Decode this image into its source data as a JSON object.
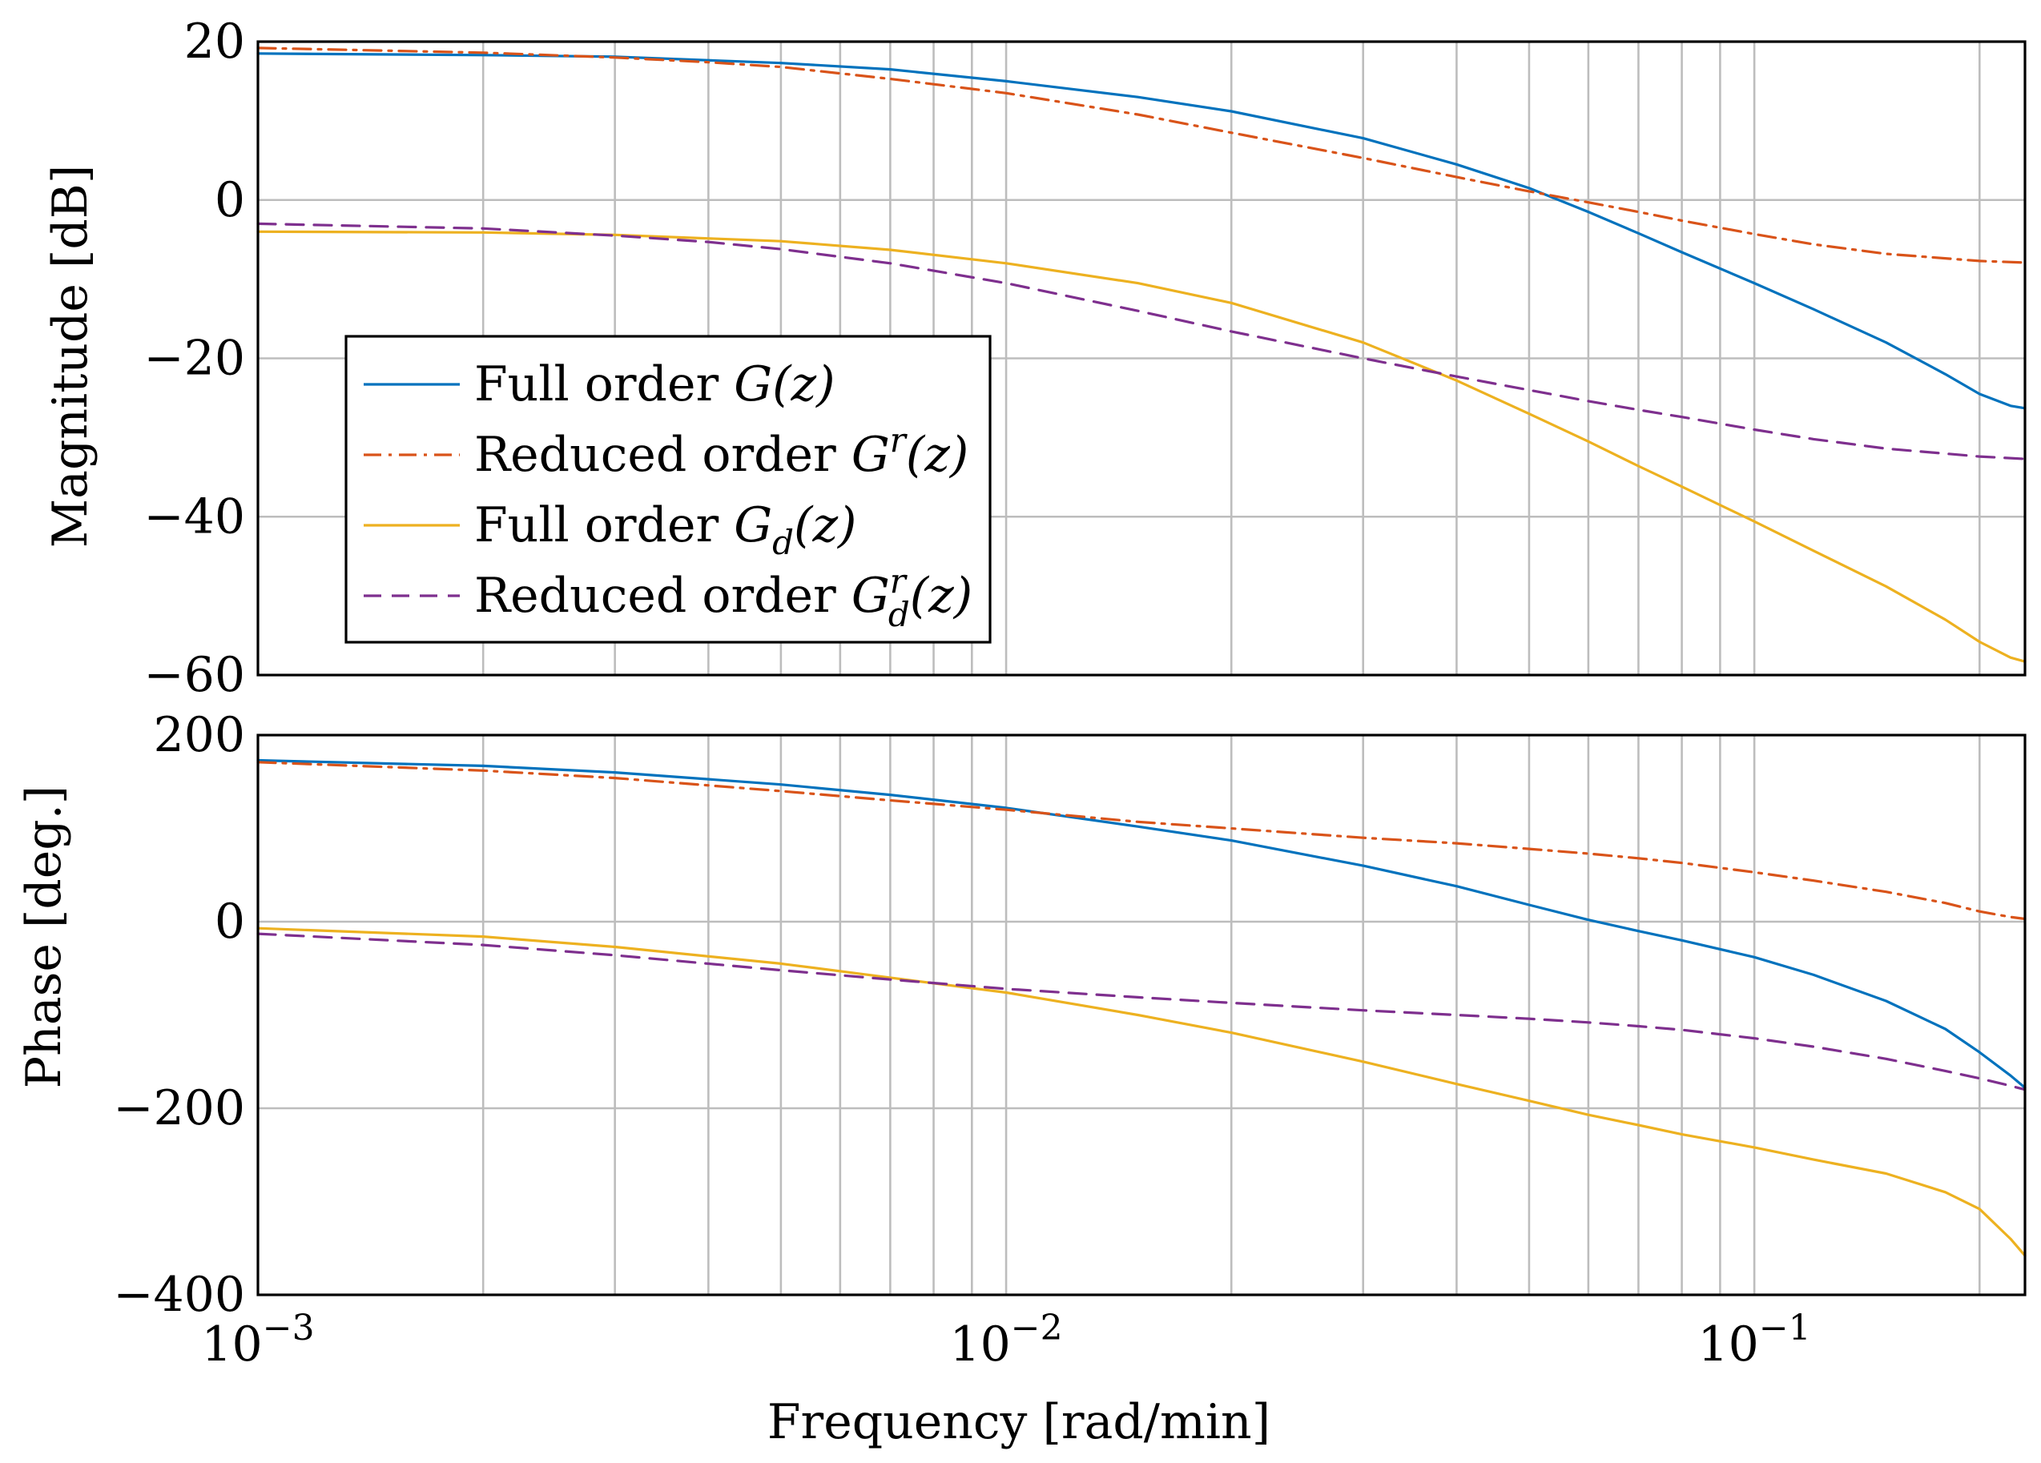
{
  "chart_data": [
    {
      "type": "line",
      "panel": "magnitude",
      "xscale": "log",
      "xlim": [
        0.001,
        0.23
      ],
      "ylim": [
        -60,
        20
      ],
      "ylabel": "Magnitude [dB]",
      "yticks": [
        {
          "value": 20,
          "label": "20"
        },
        {
          "value": 0,
          "label": "0"
        },
        {
          "value": -20,
          "label": "−20"
        },
        {
          "value": -40,
          "label": "−40"
        },
        {
          "value": -60,
          "label": "−60"
        }
      ],
      "grid": true,
      "legend_position": "bottom-left",
      "series": [
        {
          "name": "Full order G(z)",
          "key": "full_g",
          "color": "#0072bd",
          "dash": "solid",
          "x": [
            0.001,
            0.002,
            0.003,
            0.005,
            0.007,
            0.01,
            0.015,
            0.02,
            0.03,
            0.04,
            0.05,
            0.06,
            0.07,
            0.08,
            0.1,
            0.12,
            0.15,
            0.18,
            0.2,
            0.22,
            0.23
          ],
          "y": [
            18.5,
            18.3,
            18.1,
            17.3,
            16.5,
            15.0,
            13.0,
            11.2,
            7.8,
            4.5,
            1.5,
            -1.5,
            -4.2,
            -6.6,
            -10.5,
            -13.8,
            -18.0,
            -22.0,
            -24.5,
            -26.0,
            -26.3
          ]
        },
        {
          "name": "Reduced order G^r(z)",
          "key": "reduced_g",
          "color": "#d95319",
          "dash": "dashdot",
          "x": [
            0.001,
            0.002,
            0.003,
            0.004,
            0.005,
            0.007,
            0.01,
            0.015,
            0.02,
            0.03,
            0.04,
            0.05,
            0.06,
            0.07,
            0.08,
            0.1,
            0.12,
            0.15,
            0.2,
            0.23
          ],
          "y": [
            19.2,
            18.6,
            18.0,
            17.4,
            16.8,
            15.3,
            13.5,
            10.8,
            8.5,
            5.3,
            2.9,
            1.1,
            -0.3,
            -1.5,
            -2.6,
            -4.3,
            -5.6,
            -6.8,
            -7.7,
            -7.9
          ]
        },
        {
          "name": "Full order G_d(z)",
          "key": "full_gd",
          "color": "#edb120",
          "dash": "solid",
          "x": [
            0.001,
            0.002,
            0.003,
            0.005,
            0.007,
            0.01,
            0.015,
            0.02,
            0.03,
            0.04,
            0.05,
            0.06,
            0.07,
            0.08,
            0.1,
            0.12,
            0.15,
            0.18,
            0.2,
            0.22,
            0.23
          ],
          "y": [
            -4.0,
            -4.1,
            -4.4,
            -5.2,
            -6.3,
            -8.0,
            -10.5,
            -13.0,
            -18.0,
            -22.8,
            -27.0,
            -30.5,
            -33.6,
            -36.2,
            -40.6,
            -44.3,
            -48.8,
            -53.0,
            -55.8,
            -57.8,
            -58.3
          ]
        },
        {
          "name": "Reduced order G_d^r(z)",
          "key": "reduced_gd",
          "color": "#7e2f8e",
          "dash": "dashed",
          "x": [
            0.001,
            0.002,
            0.003,
            0.004,
            0.005,
            0.007,
            0.01,
            0.015,
            0.02,
            0.03,
            0.04,
            0.05,
            0.06,
            0.07,
            0.08,
            0.1,
            0.12,
            0.15,
            0.2,
            0.23
          ],
          "y": [
            -3.0,
            -3.6,
            -4.5,
            -5.3,
            -6.2,
            -8.0,
            -10.5,
            -14.0,
            -16.6,
            -20.0,
            -22.3,
            -24.0,
            -25.4,
            -26.5,
            -27.4,
            -29.0,
            -30.2,
            -31.4,
            -32.4,
            -32.7
          ]
        }
      ]
    },
    {
      "type": "line",
      "panel": "phase",
      "xscale": "log",
      "xlim": [
        0.001,
        0.23
      ],
      "ylim": [
        -400,
        200
      ],
      "ylabel": "Phase [deg.]",
      "xlabel": "Frequency [rad/min]",
      "yticks": [
        {
          "value": 200,
          "label": "200"
        },
        {
          "value": 0,
          "label": "0"
        },
        {
          "value": -200,
          "label": "−200"
        },
        {
          "value": -400,
          "label": "−400"
        }
      ],
      "xticks": [
        {
          "value": 0.001,
          "base": "10",
          "exp": "−3"
        },
        {
          "value": 0.01,
          "base": "10",
          "exp": "−2"
        },
        {
          "value": 0.1,
          "base": "10",
          "exp": "−1"
        }
      ],
      "grid": true,
      "series": [
        {
          "name": "Full order G(z)",
          "key": "full_g",
          "color": "#0072bd",
          "dash": "solid",
          "x": [
            0.001,
            0.002,
            0.003,
            0.005,
            0.007,
            0.01,
            0.015,
            0.02,
            0.03,
            0.04,
            0.05,
            0.06,
            0.07,
            0.08,
            0.1,
            0.12,
            0.15,
            0.18,
            0.2,
            0.22,
            0.23
          ],
          "y": [
            173,
            167,
            160,
            147,
            136,
            122,
            102,
            87,
            60,
            38,
            18,
            2,
            -10,
            -20,
            -38,
            -57,
            -85,
            -115,
            -140,
            -165,
            -178
          ]
        },
        {
          "name": "Reduced order G^r(z)",
          "key": "reduced_g",
          "color": "#d95319",
          "dash": "dashdot",
          "x": [
            0.001,
            0.002,
            0.003,
            0.005,
            0.007,
            0.01,
            0.015,
            0.02,
            0.03,
            0.04,
            0.05,
            0.06,
            0.07,
            0.08,
            0.1,
            0.12,
            0.15,
            0.18,
            0.2,
            0.22,
            0.23
          ],
          "y": [
            171,
            162,
            154,
            140,
            130,
            120,
            107,
            100,
            90,
            84,
            78,
            73,
            68,
            63,
            53,
            44,
            32,
            20,
            11,
            5,
            3
          ]
        },
        {
          "name": "Full order G_d(z)",
          "key": "full_gd",
          "color": "#edb120",
          "dash": "solid",
          "x": [
            0.001,
            0.002,
            0.003,
            0.005,
            0.007,
            0.01,
            0.015,
            0.02,
            0.03,
            0.04,
            0.05,
            0.06,
            0.07,
            0.08,
            0.1,
            0.12,
            0.15,
            0.18,
            0.2,
            0.22,
            0.23
          ],
          "y": [
            -7,
            -16,
            -27,
            -45,
            -60,
            -76,
            -100,
            -119,
            -150,
            -174,
            -192,
            -207,
            -218,
            -228,
            -242,
            -255,
            -270,
            -290,
            -308,
            -340,
            -358
          ]
        },
        {
          "name": "Reduced order G_d^r(z)",
          "key": "reduced_gd",
          "color": "#7e2f8e",
          "dash": "dashed",
          "x": [
            0.001,
            0.002,
            0.003,
            0.005,
            0.007,
            0.01,
            0.015,
            0.02,
            0.03,
            0.04,
            0.05,
            0.06,
            0.07,
            0.08,
            0.1,
            0.12,
            0.15,
            0.18,
            0.2,
            0.22,
            0.23
          ],
          "y": [
            -13,
            -25,
            -36,
            -52,
            -62,
            -72,
            -81,
            -87,
            -95,
            -100,
            -104,
            -108,
            -112,
            -116,
            -125,
            -134,
            -147,
            -160,
            -168,
            -176,
            -180
          ]
        }
      ]
    }
  ],
  "legend": [
    {
      "key": "full_g",
      "text": "Full order ",
      "sym": "G",
      "sup": "",
      "sub": "",
      "arg": "(z)"
    },
    {
      "key": "reduced_g",
      "text": "Reduced order ",
      "sym": "G",
      "sup": "r",
      "sub": "",
      "arg": "(z)"
    },
    {
      "key": "full_gd",
      "text": "Full order ",
      "sym": "G",
      "sup": "",
      "sub": "d",
      "arg": "(z)"
    },
    {
      "key": "reduced_gd",
      "text": "Reduced order ",
      "sym": "G",
      "sup": "r",
      "sub": "d",
      "arg": "(z)"
    }
  ]
}
